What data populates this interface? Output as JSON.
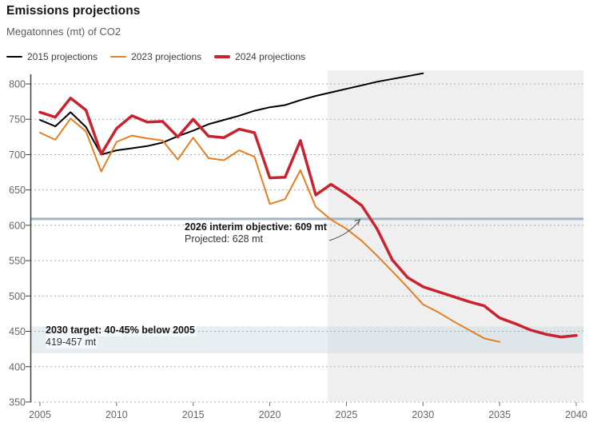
{
  "header": {
    "title": "Emissions projections",
    "subtitle": "Megatonnes (mt) of CO2"
  },
  "legend": [
    {
      "label": "2015 projections",
      "color": "#000000",
      "thickness": 2
    },
    {
      "label": "2023 projections",
      "color": "#e67e22",
      "thickness": 2
    },
    {
      "label": "2024 projections",
      "color": "#c8232f",
      "thickness": 4
    }
  ],
  "chart_data": {
    "type": "line",
    "title": "Emissions projections",
    "ylabel": "Megatonnes (mt) of CO2",
    "xlabel": "",
    "xlim": [
      2005,
      2040
    ],
    "ylim": [
      350,
      820
    ],
    "x_ticks": [
      2005,
      2010,
      2015,
      2020,
      2025,
      2030,
      2035,
      2040
    ],
    "y_ticks": [
      350,
      400,
      450,
      500,
      550,
      600,
      650,
      700,
      750,
      800
    ],
    "grid": "horizontal dotted",
    "legend_position": "top-left",
    "projection_shading_from_year": 2024,
    "series": [
      {
        "name": "2015 projections",
        "color": "#000000",
        "width": 2,
        "start_year": 2005,
        "values": [
          749,
          740,
          760,
          739,
          700,
          706,
          709,
          712,
          717,
          726,
          734,
          743,
          749,
          755,
          762,
          767,
          770,
          777,
          783,
          788,
          793,
          798,
          803,
          807,
          811,
          815
        ]
      },
      {
        "name": "2023 projections",
        "color": "#e67e22",
        "width": 2,
        "start_year": 2005,
        "values": [
          731,
          721,
          751,
          733,
          676,
          718,
          727,
          723,
          720,
          693,
          724,
          695,
          692,
          706,
          697,
          630,
          637,
          678,
          626,
          608,
          595,
          578,
          557,
          535,
          512,
          488,
          477,
          464,
          452,
          440,
          435
        ]
      },
      {
        "name": "2024 projections",
        "color": "#c8232f",
        "width": 3.5,
        "start_year": 2005,
        "values": [
          760,
          753,
          780,
          763,
          701,
          737,
          755,
          746,
          747,
          725,
          750,
          726,
          724,
          736,
          731,
          667,
          668,
          720,
          643,
          658,
          644,
          628,
          595,
          551,
          526,
          513,
          506,
          499,
          492,
          486,
          469,
          461,
          452,
          446,
          442,
          444
        ]
      }
    ],
    "reference_line": {
      "value": 609,
      "color": "#a4b6c2",
      "annotation_bold": "2026 interim objective: 609 mt",
      "annotation_regular": "Projected: 628 mt"
    },
    "target_band": {
      "from": 419,
      "to": 457,
      "annotation_bold": "2030 target: 40-45% below 2005",
      "annotation_regular": "419-457 mt"
    }
  }
}
